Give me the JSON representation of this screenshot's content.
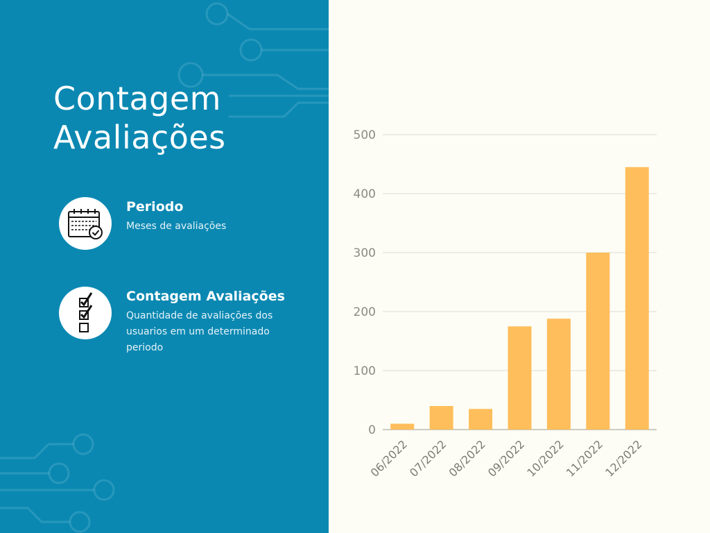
{
  "title": "Contagem Avaliações",
  "legend": {
    "items": [
      {
        "title": "Periodo",
        "description": "Meses de avaliações",
        "icon": "calendar-icon"
      },
      {
        "title": "Contagem Avaliações",
        "description": "Quantidade de avaliações dos usuarios em um determinado periodo",
        "icon": "checklist-icon"
      }
    ]
  },
  "colors": {
    "panel": "#0a88b2",
    "background": "#fdfdf5",
    "bar": "#ffbe5c"
  },
  "chart_data": {
    "type": "bar",
    "categories": [
      "06/2022",
      "07/2022",
      "08/2022",
      "09/2022",
      "10/2022",
      "11/2022",
      "12/2022"
    ],
    "values": [
      10,
      40,
      35,
      175,
      188,
      300,
      445
    ],
    "ylim": [
      0,
      500
    ],
    "yticks": [
      0,
      100,
      200,
      300,
      400,
      500
    ],
    "grid": true,
    "xlabel_rotation": -45
  }
}
